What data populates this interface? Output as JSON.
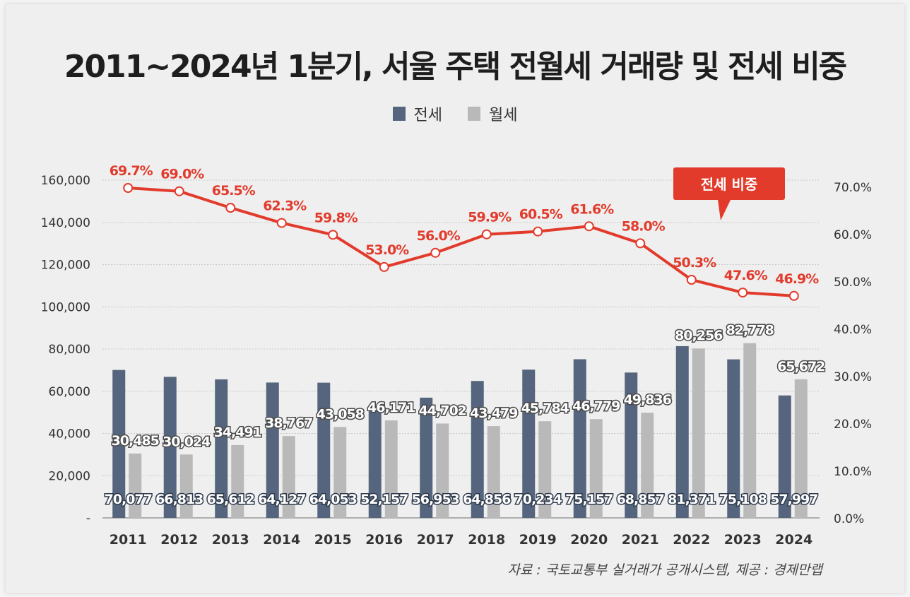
{
  "title": "2011~2024년 1분기, 서울 주택 전월세 거래량 및 전세 비중",
  "source": "자료 : 국토교통부 실거래가 공개시스템, 제공 : 경제만랩",
  "colors": {
    "jeonse_bar": "#55657d",
    "wolse_bar": "#b9b9b9",
    "ratio_line": "#e23b2c",
    "background": "#efefef"
  },
  "callout": {
    "label": "전세 비중"
  },
  "chart_data": {
    "type": "bar",
    "categories": [
      "2011",
      "2012",
      "2013",
      "2014",
      "2015",
      "2016",
      "2017",
      "2018",
      "2019",
      "2020",
      "2021",
      "2022",
      "2023",
      "2024"
    ],
    "series": [
      {
        "name": "전세",
        "kind": "bar",
        "axis": "left",
        "values": [
          70077,
          66813,
          65612,
          64127,
          64053,
          52157,
          56953,
          64856,
          70234,
          75157,
          68857,
          81371,
          75108,
          57997
        ],
        "labels": [
          "70,077",
          "66,813",
          "65,612",
          "64,127",
          "64,053",
          "52,157",
          "56,953",
          "64,856",
          "70,234",
          "75,157",
          "68,857",
          "81,371",
          "75,108",
          "57,997"
        ]
      },
      {
        "name": "월세",
        "kind": "bar",
        "axis": "left",
        "values": [
          30485,
          30024,
          34491,
          38767,
          43058,
          46171,
          44702,
          43479,
          45784,
          46779,
          49836,
          80256,
          82778,
          65672
        ],
        "labels": [
          "30,485",
          "30,024",
          "34,491",
          "38,767",
          "43,058",
          "46,171",
          "44,702",
          "43,479",
          "45,784",
          "46,779",
          "49,836",
          "80,256",
          "82,778",
          "65,672"
        ]
      },
      {
        "name": "전세 비중",
        "kind": "line",
        "axis": "right",
        "values": [
          69.7,
          69.0,
          65.5,
          62.3,
          59.8,
          53.0,
          56.0,
          59.9,
          60.5,
          61.6,
          58.0,
          50.3,
          47.6,
          46.9
        ],
        "labels": [
          "69.7%",
          "69.0%",
          "65.5%",
          "62.3%",
          "59.8%",
          "53.0%",
          "56.0%",
          "59.9%",
          "60.5%",
          "61.6%",
          "58.0%",
          "50.3%",
          "47.6%",
          "46.9%"
        ]
      }
    ],
    "y_left": {
      "ylim": [
        0,
        160000
      ],
      "ticks": [
        "-",
        "20,000",
        "40,000",
        "60,000",
        "80,000",
        "100,000",
        "120,000",
        "140,000",
        "160,000"
      ]
    },
    "y_right": {
      "ylim": [
        0,
        70
      ],
      "ticks": [
        "0.0%",
        "10.0%",
        "20.0%",
        "30.0%",
        "40.0%",
        "50.0%",
        "60.0%",
        "70.0%"
      ]
    },
    "grid": true,
    "legend_position": "top-center"
  }
}
